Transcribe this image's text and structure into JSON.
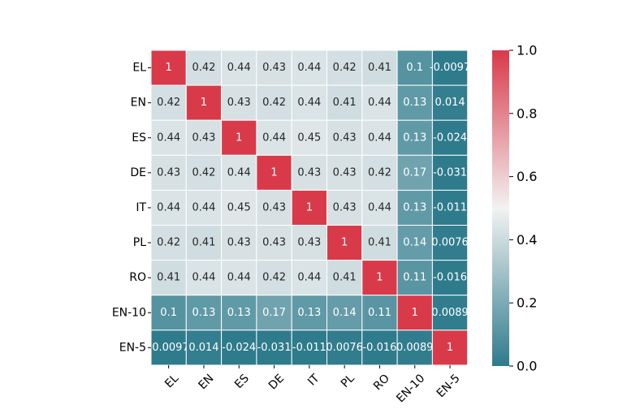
{
  "chart_data": {
    "type": "heatmap",
    "title": "",
    "xlabel": "",
    "ylabel": "",
    "row_labels": [
      "EL",
      "EN",
      "ES",
      "DE",
      "IT",
      "PL",
      "RO",
      "EN-10",
      "EN-5"
    ],
    "col_labels": [
      "EL",
      "EN",
      "ES",
      "DE",
      "IT",
      "PL",
      "RO",
      "EN-10",
      "EN-5"
    ],
    "values": [
      [
        1,
        0.42,
        0.44,
        0.43,
        0.44,
        0.42,
        0.41,
        0.1,
        -0.0097
      ],
      [
        0.42,
        1,
        0.43,
        0.42,
        0.44,
        0.41,
        0.44,
        0.13,
        0.014
      ],
      [
        0.44,
        0.43,
        1,
        0.44,
        0.45,
        0.43,
        0.44,
        0.13,
        -0.024
      ],
      [
        0.43,
        0.42,
        0.44,
        1,
        0.43,
        0.43,
        0.42,
        0.17,
        -0.031
      ],
      [
        0.44,
        0.44,
        0.45,
        0.43,
        1,
        0.43,
        0.44,
        0.13,
        -0.011
      ],
      [
        0.42,
        0.41,
        0.43,
        0.43,
        0.43,
        1,
        0.41,
        0.14,
        0.0076
      ],
      [
        0.41,
        0.44,
        0.44,
        0.42,
        0.44,
        0.41,
        1,
        0.11,
        -0.016
      ],
      [
        0.1,
        0.13,
        0.13,
        0.17,
        0.13,
        0.14,
        0.11,
        1,
        0.0089
      ],
      [
        -0.0097,
        0.014,
        -0.024,
        -0.031,
        -0.011,
        0.0076,
        -0.016,
        0.0089,
        1
      ]
    ],
    "value_labels": [
      [
        "1",
        "0.42",
        "0.44",
        "0.43",
        "0.44",
        "0.42",
        "0.41",
        "0.1",
        "-0.0097"
      ],
      [
        "0.42",
        "1",
        "0.43",
        "0.42",
        "0.44",
        "0.41",
        "0.44",
        "0.13",
        "0.014"
      ],
      [
        "0.44",
        "0.43",
        "1",
        "0.44",
        "0.45",
        "0.43",
        "0.44",
        "0.13",
        "-0.024"
      ],
      [
        "0.43",
        "0.42",
        "0.44",
        "1",
        "0.43",
        "0.43",
        "0.42",
        "0.17",
        "-0.031"
      ],
      [
        "0.44",
        "0.44",
        "0.45",
        "0.43",
        "1",
        "0.43",
        "0.44",
        "0.13",
        "-0.011"
      ],
      [
        "0.42",
        "0.41",
        "0.43",
        "0.43",
        "0.43",
        "1",
        "0.41",
        "0.14",
        "0.0076"
      ],
      [
        "0.41",
        "0.44",
        "0.44",
        "0.42",
        "0.44",
        "0.41",
        "1",
        "0.11",
        "-0.016"
      ],
      [
        "0.1",
        "0.13",
        "0.13",
        "0.17",
        "0.13",
        "0.14",
        "0.11",
        "1",
        "0.0089"
      ],
      [
        "-0.0097",
        "0.014",
        "-0.024",
        "-0.031",
        "-0.011",
        "0.0076",
        "-0.016",
        "0.0089",
        "1"
      ]
    ],
    "vmin": 0.0,
    "vmax": 1.0,
    "colorbar": {
      "ticks": [
        0.0,
        0.2,
        0.4,
        0.6,
        0.8,
        1.0
      ],
      "tick_labels": [
        "0.0",
        "0.2",
        "0.4",
        "0.6",
        "0.8",
        "1.0"
      ],
      "placement": "right"
    },
    "colormap": {
      "low": "#2e7b8c",
      "mid": "#f2f2f2",
      "high": "#d93a49"
    },
    "grid": true,
    "cell_border_color": "#ffffff"
  }
}
